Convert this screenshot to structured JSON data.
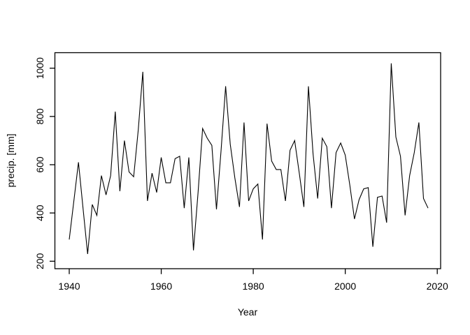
{
  "figure": {
    "background": "#ffffff",
    "axis_color": "#000000",
    "line_color": "#000000"
  },
  "chart_data": {
    "type": "line",
    "title": "",
    "xlabel": "Year",
    "ylabel": "precip. [mm]",
    "grid": false,
    "legend": null,
    "xlim": [
      1937,
      2021
    ],
    "ylim": [
      168,
      1053
    ],
    "x_ticks": [
      1940,
      1960,
      1980,
      2000,
      2020
    ],
    "y_ticks": [
      200,
      400,
      600,
      800,
      1000
    ],
    "series": [
      {
        "name": "precipitation",
        "x": [
          1940,
          1941,
          1942,
          1943,
          1944,
          1945,
          1946,
          1947,
          1948,
          1949,
          1950,
          1951,
          1952,
          1953,
          1954,
          1955,
          1956,
          1957,
          1958,
          1959,
          1960,
          1961,
          1962,
          1963,
          1964,
          1965,
          1966,
          1967,
          1968,
          1969,
          1970,
          1971,
          1972,
          1973,
          1974,
          1975,
          1976,
          1977,
          1978,
          1979,
          1980,
          1981,
          1982,
          1983,
          1984,
          1985,
          1986,
          1987,
          1988,
          1989,
          1990,
          1991,
          1992,
          1993,
          1994,
          1995,
          1996,
          1997,
          1998,
          1999,
          2000,
          2001,
          2002,
          2003,
          2004,
          2005,
          2006,
          2007,
          2008,
          2009,
          2010,
          2011,
          2012,
          2013,
          2014,
          2015,
          2016,
          2017,
          2018
        ],
        "values": [
          290,
          450,
          610,
          420,
          230,
          435,
          390,
          555,
          475,
          555,
          820,
          490,
          700,
          570,
          550,
          745,
          985,
          450,
          565,
          485,
          630,
          525,
          525,
          625,
          635,
          420,
          630,
          245,
          485,
          750,
          710,
          680,
          415,
          660,
          925,
          685,
          545,
          425,
          775,
          450,
          500,
          520,
          290,
          770,
          615,
          580,
          580,
          450,
          660,
          700,
          565,
          425,
          925,
          645,
          460,
          710,
          675,
          420,
          650,
          690,
          640,
          515,
          375,
          455,
          500,
          505,
          260,
          465,
          470,
          360,
          1020,
          715,
          635,
          390,
          555,
          650,
          775,
          460,
          420
        ]
      }
    ]
  }
}
